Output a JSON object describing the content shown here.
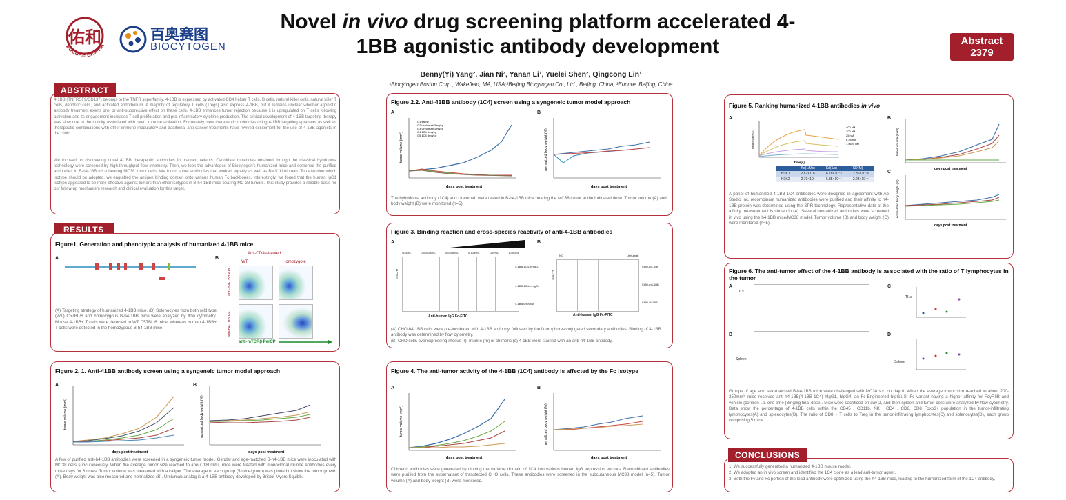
{
  "header": {
    "title_pre": "Novel ",
    "title_italic": "in vivo",
    "title_post": " drug screening platform accelerated 4-1BB agonistic antibody development",
    "abstract_badge": "Abstract\n2379",
    "authors": "Benny(Yi) Yang², Jian Ni³, Yanan Li¹, Yuelei Shen², Qingcong Lin¹",
    "affiliations": "¹Biocytogen Boston Corp., Wakefield, MA, USA;²Beijing Biocytogen Co., Ltd., Beijing, China; ³Eucure, Beijing, China",
    "logo1_cn": "佑和",
    "logo1_en": "EUCURE BIOPHARMA",
    "logo2_cn": "百奥赛图",
    "logo2_en": "BIOCYTOGEN"
  },
  "abstract": {
    "label": "ABSTRACT",
    "text": "4-1BB (TNFRSF9/CD137) belongs to the TNFR superfamily. 4-1BB is expressed by activated CD4 helper T cells, B cells, natural killer cells, natural killer T cells, dendritic cells, and activated endothelium. A majority of regulatory T cells (Tregs) also express 4-1BB, but it remains unclear whether agonistic antibody treatment exerts pro- or anti-suppressive effect on these cells. 4-1BB enhances tumor rejection because it is upregulated on T cells following activation and its engagement increases T cell proliferation and pro-inflammatory cytokine production. The clinical development of 4-1BB targeting therapy was slow due to the toxicity associated with overt immune activation. Fortunately, new therapeutic molecules using 4-1BB targeting aptamers as well as therapeutic combinations with other immune-modulatory and traditional anti-cancer treatments have revived excitement for the use of 4-1BB agonists in the clinic.",
    "text2": "We focused on discovering novel 4-1BB therapeutic antibodies for cancer patients. Candidate molecules obtained through the classical hybridoma technology were screened by high-throughput flow cytometry. Then, we took the advantages of Biocytogen's humanized mice and screened the purified antibodies in B-h4-1BB mice bearing MC38 tumor cells. We found some antibodies that worked equally as well as BMS' Urelumab. To determine which isotype should be adopted, we engrafted the antigen binding domain onto various human Fc backbones. Interestingly, we found that the human IgG1 isotype appeared to be more effective against tumors than other isotypes in B-h4-1BB mice bearing MC-38 tumors. This study provides a reliable basis for our follow-up mechanism research and clinical evaluation for this target."
  },
  "results_label": "RESULTS",
  "fig1": {
    "title": "Figure1. Generation and phenotypic analysis of humanized 4-1BB mice",
    "a": "A",
    "b": "B",
    "anti_cd3": "Anti-CD3e-treated",
    "wt": "WT",
    "homo": "Homozygote",
    "yaxis1": "anti-m4-1BB APC",
    "yaxis2": "anti-h4-1BB PE",
    "xaxis": "anti-mTCRβ PerCP",
    "caption": "(A) Targeting strategy of humanized 4-1BB mice. (B) Splenocytes from both wild type (WT) C57BL/6 and homozygous B-h4-1BB mice were analyzed by flow cytometry. Mouse 4-1BB+ T cells were detected in WT C57BL/6 mice, whereas human 4-1BB+ T cells were detected in the homozygous B-h4-1BB mice."
  },
  "fig21": {
    "title": "Figure 2. 1. Anti-41BB antibody screen using a syngeneic tumor model approach",
    "a": "A",
    "b": "B",
    "ylabel_a": "tumor volume (mm³)",
    "ylabel_b": "normalized body weight (%)",
    "xlabel": "days post treatment",
    "caption": "A few of purified anti-h4-1BB antibodies were screened in a syngeneic tumor model. Gender and age-matched B-h4-1BB mice were inoculated with MC38 cells subcutaneously. When the average tumor size reached to about 180mm³, mice were treated with monoclonal murine antibodies every three days for 6 times. Tumor volume was measured with a caliper. The average of each group (5 mice/group) was plotted to show the tumor growth (A). Body weight was also measured and normalized (B). Urelumab analog is a 4-1BB antibody developed by Bristol-Myers Squibb."
  },
  "fig22": {
    "title": "Figure 2.2. Anti-41BB antibody (1C4) screen using a syngeneic tumor model approach",
    "a": "A",
    "b": "B",
    "ylabel_a": "tumor volume (mm³)",
    "ylabel_b": "normalized body weight (%)",
    "xlabel": "days post treatment",
    "caption": "The hybridoma antibody (1C4) and Urelumab were tested in B-h4-1BB mice bearing the MC38 tumor at the indicated dose. Tumor volume (A) and body weight (B) were monitored (n=5).",
    "legend": [
      "G1 saline",
      "G2 Urelumab 3mg/kg",
      "G3 Urelumab 1mg/kg",
      "G4 1C4 1mg/kg",
      "G5 1C4 3mg/kg"
    ]
  },
  "fig3": {
    "title": "Figure 3. Binding reaction and cross-species reactivity of anti-4-1BB antibodies",
    "a": "A",
    "b": "B",
    "conc": [
      "0μg/mL",
      "0.005μg/mL",
      "0.05μg/mL",
      "0.1μg/mL",
      "1μg/mL",
      "10μg/mL"
    ],
    "rows_a": [
      "4-1BB-1C4-mhIgG1",
      "4-1BB-1C4-mhIgG4",
      "4-1BB unknown"
    ],
    "rows_b": [
      "CHO-h4-1BB",
      "CHO-m4-1BB",
      "CHO-r4-1BB"
    ],
    "nc": "NC",
    "urelumab": "Urelumab",
    "xlab": "Anti-human IgG Fc-FITC",
    "ylab": "SSC-H",
    "caption": "(A) CHO-h4-1BB cells were pre-incubated with 4-1BB antibody, followed by the fluorophore-conjugated secondary antibodies. Binding of 4-1BB antibody was determined by flow cytometry.",
    "caption2": "(B) CHO cells overexpressing rhesus (r), murine (m) or chimeric (c) 4-1BB were stained with an anti-h4-1BB antibody."
  },
  "fig4": {
    "title": "Figure 4. The anti-tumor activity of the 4-1BB (1C4) antibody is affected by the Fc isotype",
    "a": "A",
    "b": "B",
    "ylabel_a": "tumor volume (mm³)",
    "ylabel_b": "normalized body weight (%)",
    "xlabel": "days post treatment",
    "caption": "Chimeric antibodies were generated by cloning the variable domain of 1C4 into various human IgG expression vectors. Recombinant antibodies were purified from the supernatant of transfected CHO cells. These antibodies were screened in the subcutaneous MC38 model (n=5). Tumor volume (A) and body weight (B) were monitored."
  },
  "fig5": {
    "title_pre": "Figure 5. Ranking humanized 4-1BB antibodies ",
    "title_italic": "in vivo",
    "a": "A",
    "b": "B",
    "c": "C",
    "spr_x": "Time(s)",
    "spr_y": "Response(RU)",
    "spr_legend": [
      "400 nM",
      "100 nM",
      "25 nM",
      "6.25 nM",
      "1.5625 nM"
    ],
    "table_head": [
      "",
      "Ka(1/Ms)",
      "Kd(1/s)",
      "KD(M)"
    ],
    "table_rows": [
      [
        "H1K1",
        "2.87×10⁵",
        "6.78×10⁻⁴",
        "2.36×10⁻⁹"
      ],
      [
        "H1K2",
        "2.79×10⁵",
        "6.35×10⁻⁴",
        "2.28×10⁻⁹"
      ]
    ],
    "ylabel_b": "tumor volume (mm³)",
    "ylabel_c": "normalized body weight (%)",
    "xlabel": "days post treatment",
    "caption": "A panel of humanized 4-1BB-1C4 antibodies were designed in agreement with Ab Studio Inc. recombinant humanized antibodies were purified and their affinity to h4-1BB protein was determined using the SPR technology. Representative data of the affinity measurement is shown in (A). Several humanized antibodies were screened in vivo using the h4-1BB mice/MC38 model. Tumor volume (B) and body weight (C) were monitored (n=5)."
  },
  "fig6": {
    "title": "Figure 6. The anti-tumor effect of the 4-1BB antibody is associated with the ratio of T lymphocytes in the tumor",
    "a": "A",
    "b": "B",
    "c": "C",
    "d": "D",
    "tils": "TILs",
    "spleen": "Spleen",
    "caption": "Groups of age and sex-matched B-h4-1BB mice were challenged with MC38 s.c. on day 0. When the average tumor size reached to about 200-250mm³, mice received anti-h4-1BB(4-1BB-1C4) hIgG1, hIgG4, an Fc-Engineered hIgG1-SI Fc variant having a higher affinity for FcγRIIB and vehicle (control) i.p. one time (3mg/kg final dose). Mice were sacrificed on day 2, and then spleen and tumor cells were analyzed by flow cytometry. Data show the percentage of 4-1BB cells within the CD45+, CD11b, NK+, CD4+, CD8, CD8+Foxp3+ population in the tumor-infiltrating lymphocytes(A) and splenocytes(B). The ratio of CD8 + T cells to Treg in the tumor-infiltrating lymphocytes(C) and splenocytes(D), each group comprising 5 mice."
  },
  "conclusions": {
    "label": "CONCLUSIONS",
    "items": [
      "1. We successfully generated a humanized 4-1BB mouse model.",
      "2. We adopted an in vivo screen and identified the 1C4 clone as a lead anti-tumor agent.",
      "3. Both the Fv and Fc portion of the lead antibody were optimized using the h4-1BB mice, leading to the humanized form of the 1C4 antibody."
    ]
  },
  "colors": {
    "brand_red": "#a31f2b",
    "panel_border": "#b5323c",
    "biocytogen_blue": "#1c3f8a"
  }
}
